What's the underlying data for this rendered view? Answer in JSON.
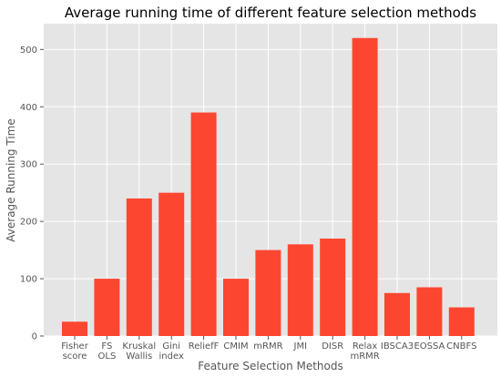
{
  "chart_data": {
    "type": "bar",
    "title": "Average running time of different feature selection methods",
    "xlabel": "Feature Selection Methods",
    "ylabel": "Average Running Time",
    "ylim": [
      0,
      545
    ],
    "yticks": [
      0,
      100,
      200,
      300,
      400,
      500
    ],
    "grid": true,
    "bar_color": "#fc4630",
    "plot_background": "#e5e5e5",
    "categories": [
      [
        "Fisher",
        "score"
      ],
      [
        "FS",
        "OLS"
      ],
      [
        "Kruskal",
        "Wallis"
      ],
      [
        "Gini",
        "index"
      ],
      [
        "ReliefF"
      ],
      [
        "CMIM"
      ],
      [
        "mRMR"
      ],
      [
        "JMI"
      ],
      [
        "DISR"
      ],
      [
        "Relax",
        "mRMR"
      ],
      [
        "IBSCA3"
      ],
      [
        "EOSSA"
      ],
      [
        "CNBFS"
      ]
    ],
    "values": [
      25,
      100,
      240,
      250,
      390,
      100,
      150,
      160,
      170,
      520,
      75,
      85,
      50
    ]
  }
}
